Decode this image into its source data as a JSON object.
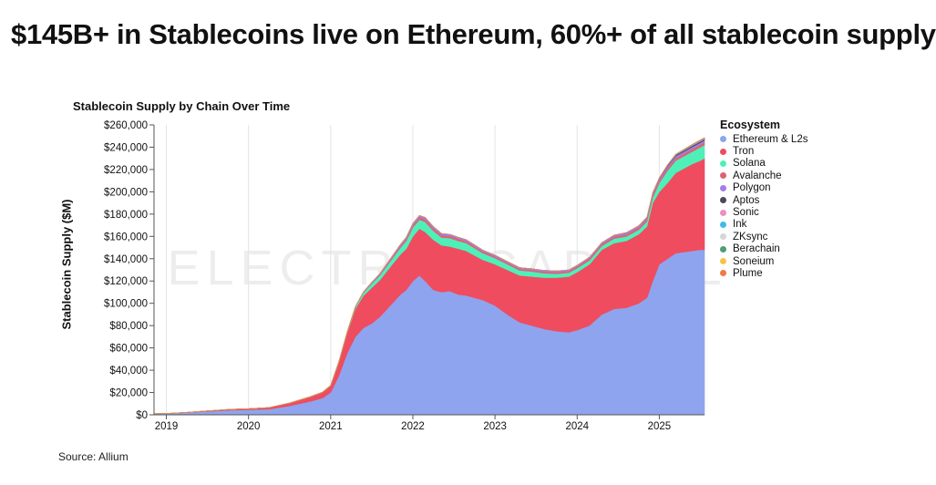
{
  "headline": "$145B+ in Stablecoins live on Ethereum, 60%+ of all stablecoin supply",
  "source": "Source: Allium",
  "watermark": "ELECTRIC CAPITAL",
  "chart_data": {
    "type": "area",
    "title": "Stablecoin Supply by Chain Over Time",
    "xlabel": "",
    "ylabel": "Stablecoin Supply ($M)",
    "ylim": [
      0,
      260000
    ],
    "xlim": [
      2018.85,
      2025.55
    ],
    "grid": "vertical",
    "legend_placement": "right",
    "legend_title": "Ecosystem",
    "y_ticks": [
      "$0",
      "$20,000",
      "$40,000",
      "$60,000",
      "$80,000",
      "$100,000",
      "$120,000",
      "$140,000",
      "$160,000",
      "$180,000",
      "$200,000",
      "$220,000",
      "$240,000",
      "$260,000"
    ],
    "x_ticks": [
      "2019",
      "2020",
      "2021",
      "2022",
      "2023",
      "2024",
      "2025"
    ],
    "x": [
      2018.85,
      2019.0,
      2019.25,
      2019.5,
      2019.75,
      2020.0,
      2020.25,
      2020.5,
      2020.75,
      2020.9,
      2021.0,
      2021.1,
      2021.2,
      2021.3,
      2021.4,
      2021.5,
      2021.6,
      2021.75,
      2021.85,
      2021.92,
      2022.0,
      2022.08,
      2022.15,
      2022.25,
      2022.35,
      2022.45,
      2022.55,
      2022.65,
      2022.75,
      2022.85,
      2023.0,
      2023.15,
      2023.3,
      2023.45,
      2023.6,
      2023.75,
      2023.9,
      2024.0,
      2024.15,
      2024.3,
      2024.45,
      2024.6,
      2024.75,
      2024.85,
      2024.92,
      2025.0,
      2025.1,
      2025.2,
      2025.3,
      2025.4,
      2025.5,
      2025.55
    ],
    "series": [
      {
        "name": "Ethereum & L2s",
        "color": "#8fa4ee",
        "values": [
          1000,
          1200,
          2000,
          3000,
          4000,
          4500,
          5000,
          8000,
          12000,
          15000,
          20000,
          35000,
          55000,
          70000,
          78000,
          82000,
          88000,
          100000,
          108000,
          112000,
          120000,
          125000,
          120000,
          112000,
          110000,
          111000,
          108000,
          107000,
          105000,
          103000,
          98000,
          90000,
          83000,
          80000,
          77000,
          75000,
          74000,
          76000,
          80000,
          90000,
          95000,
          96000,
          100000,
          105000,
          120000,
          135000,
          140000,
          145000,
          146000,
          147000,
          148000,
          148000
        ]
      },
      {
        "name": "Tron",
        "color": "#ef4c5f",
        "values": [
          0,
          0,
          200,
          500,
          800,
          1000,
          1500,
          2500,
          4000,
          5000,
          6000,
          12000,
          18000,
          25000,
          29000,
          32000,
          33000,
          35000,
          36000,
          37000,
          40000,
          42000,
          44000,
          45000,
          42000,
          40000,
          41000,
          40000,
          38000,
          36000,
          37000,
          40000,
          42000,
          44000,
          46000,
          48000,
          50000,
          52000,
          55000,
          58000,
          59000,
          60000,
          62000,
          64000,
          70000,
          65000,
          68000,
          72000,
          75000,
          78000,
          80000,
          82000
        ]
      },
      {
        "name": "Solana",
        "color": "#4ef0b8",
        "values": [
          0,
          0,
          0,
          0,
          0,
          0,
          0,
          100,
          200,
          300,
          400,
          600,
          900,
          1500,
          2500,
          3500,
          4000,
          5000,
          6000,
          7000,
          8000,
          8000,
          9000,
          8000,
          7000,
          7500,
          7000,
          7000,
          6500,
          6000,
          5500,
          5000,
          4500,
          4500,
          4000,
          3500,
          3500,
          3500,
          3500,
          3500,
          4000,
          4000,
          4000,
          4500,
          5000,
          8000,
          11000,
          11000,
          11000,
          11000,
          12000,
          12000
        ]
      },
      {
        "name": "Avalanche",
        "color": "#e06270",
        "values": [
          0,
          0,
          0,
          0,
          0,
          0,
          0,
          0,
          0,
          0,
          0,
          0,
          0,
          0,
          200,
          400,
          600,
          900,
          1200,
          1500,
          1800,
          2000,
          2200,
          2100,
          2000,
          1900,
          1800,
          1700,
          1600,
          1500,
          1400,
          1300,
          1300,
          1300,
          1300,
          1300,
          1300,
          1400,
          1500,
          1600,
          1700,
          1800,
          1900,
          2000,
          2100,
          2100,
          2200,
          2200,
          2200,
          2200,
          2200,
          2200
        ]
      },
      {
        "name": "Polygon",
        "color": "#a27de6",
        "values": [
          0,
          0,
          0,
          0,
          0,
          0,
          0,
          0,
          0,
          0,
          0,
          100,
          200,
          400,
          600,
          900,
          1100,
          1400,
          1600,
          1700,
          1800,
          1800,
          1800,
          1700,
          1600,
          1500,
          1500,
          1400,
          1400,
          1300,
          1300,
          1200,
          1200,
          1200,
          1200,
          1200,
          1200,
          1200,
          1300,
          1300,
          1400,
          1500,
          1500,
          1600,
          1700,
          1800,
          1800,
          1900,
          1900,
          2000,
          2000,
          2000
        ]
      },
      {
        "name": "Aptos",
        "color": "#4a4a5e",
        "values": [
          0,
          0,
          0,
          0,
          0,
          0,
          0,
          0,
          0,
          0,
          0,
          0,
          0,
          0,
          0,
          0,
          0,
          0,
          0,
          0,
          0,
          0,
          0,
          0,
          0,
          0,
          0,
          0,
          0,
          0,
          0,
          0,
          0,
          0,
          0,
          0,
          0,
          0,
          0,
          0,
          50,
          100,
          150,
          200,
          300,
          500,
          700,
          900,
          1000,
          1100,
          1100,
          1100
        ]
      },
      {
        "name": "Sonic",
        "color": "#ec8fc0",
        "values": [
          0,
          0,
          0,
          0,
          0,
          0,
          0,
          0,
          0,
          0,
          0,
          0,
          0,
          0,
          0,
          0,
          0,
          0,
          0,
          0,
          0,
          0,
          0,
          0,
          0,
          0,
          0,
          0,
          0,
          0,
          0,
          0,
          0,
          0,
          0,
          0,
          0,
          0,
          0,
          0,
          0,
          0,
          0,
          0,
          0,
          0,
          100,
          200,
          300,
          400,
          400,
          400
        ]
      },
      {
        "name": "Ink",
        "color": "#45b8ea",
        "values": [
          0,
          0,
          0,
          0,
          0,
          0,
          0,
          0,
          0,
          0,
          0,
          0,
          0,
          0,
          0,
          0,
          0,
          0,
          0,
          0,
          0,
          0,
          0,
          0,
          0,
          0,
          0,
          0,
          0,
          0,
          0,
          0,
          0,
          0,
          0,
          0,
          0,
          0,
          0,
          0,
          0,
          0,
          0,
          0,
          0,
          50,
          100,
          150,
          200,
          200,
          200,
          200
        ]
      },
      {
        "name": "ZKsync",
        "color": "#d6d6d6",
        "values": [
          0,
          0,
          0,
          0,
          0,
          0,
          0,
          0,
          0,
          0,
          0,
          0,
          0,
          0,
          0,
          0,
          0,
          0,
          0,
          0,
          0,
          0,
          0,
          0,
          0,
          0,
          0,
          0,
          0,
          0,
          0,
          0,
          0,
          0,
          0,
          0,
          0,
          0,
          0,
          0,
          0,
          50,
          100,
          100,
          100,
          100,
          100,
          100,
          100,
          100,
          100,
          100
        ]
      },
      {
        "name": "Berachain",
        "color": "#4f9c78",
        "values": [
          0,
          0,
          0,
          0,
          0,
          0,
          0,
          0,
          0,
          0,
          0,
          0,
          0,
          0,
          0,
          0,
          0,
          0,
          0,
          0,
          0,
          0,
          0,
          0,
          0,
          0,
          0,
          0,
          0,
          0,
          0,
          0,
          0,
          0,
          0,
          0,
          0,
          0,
          0,
          0,
          0,
          0,
          0,
          0,
          0,
          0,
          100,
          200,
          300,
          300,
          300,
          300
        ]
      },
      {
        "name": "Soneium",
        "color": "#f5c542",
        "values": [
          0,
          0,
          0,
          0,
          0,
          0,
          0,
          0,
          0,
          0,
          0,
          0,
          0,
          0,
          0,
          0,
          0,
          0,
          0,
          0,
          0,
          0,
          0,
          0,
          0,
          0,
          0,
          0,
          0,
          0,
          0,
          0,
          0,
          0,
          0,
          0,
          0,
          0,
          0,
          0,
          0,
          0,
          0,
          0,
          0,
          0,
          50,
          100,
          100,
          100,
          100,
          100
        ]
      },
      {
        "name": "Plume",
        "color": "#f07a45",
        "values": [
          0,
          0,
          0,
          0,
          0,
          0,
          0,
          0,
          0,
          0,
          0,
          0,
          0,
          0,
          0,
          0,
          0,
          0,
          0,
          0,
          0,
          0,
          0,
          0,
          0,
          0,
          0,
          0,
          0,
          0,
          0,
          0,
          0,
          0,
          0,
          0,
          0,
          0,
          0,
          0,
          0,
          0,
          0,
          0,
          0,
          0,
          0,
          0,
          50,
          100,
          150,
          150
        ]
      }
    ]
  }
}
